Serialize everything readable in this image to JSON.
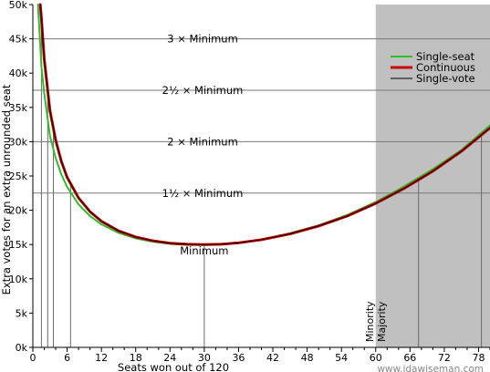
{
  "chart_data": {
    "type": "line",
    "xlabel": "Seats won out of 120",
    "ylabel": "Extra votes for an extra unrounded seat",
    "xlim": [
      0,
      80
    ],
    "ylim": [
      0,
      50000
    ],
    "x_ticks": [
      0,
      6,
      12,
      18,
      24,
      30,
      36,
      42,
      48,
      54,
      60,
      66,
      72,
      78
    ],
    "y_ticks": [
      0,
      5000,
      10000,
      15000,
      20000,
      25000,
      30000,
      35000,
      40000,
      45000,
      50000
    ],
    "y_tick_labels": [
      "0k",
      "5k",
      "10k",
      "15k",
      "20k",
      "25k",
      "30k",
      "35k",
      "40k",
      "45k",
      "50k"
    ],
    "shaded_region": {
      "from": 60,
      "to": 80,
      "color": "#c0c0c0"
    },
    "side_labels": {
      "minority": "Minority",
      "majority": "Majority"
    },
    "minimum": 15000,
    "reference_lines": [
      {
        "label": "Minimum",
        "value": 15000
      },
      {
        "label": "1½ × Minimum",
        "value": 22500
      },
      {
        "label": "2 × Minimum",
        "value": 30000
      },
      {
        "label": "2½ × Minimum",
        "value": 37500
      },
      {
        "label": "3 × Minimum",
        "value": 45000
      }
    ],
    "vertical_markers": [
      1.5,
      2.6,
      3.6,
      6.6,
      30,
      67.5,
      78.5
    ],
    "legend_position": "top-right",
    "series": [
      {
        "name": "Single-seat",
        "color": "#2dbd2d",
        "width": 2,
        "x": [
          0.9,
          1.5,
          2,
          3,
          4,
          5,
          6,
          8,
          10,
          12,
          15,
          18,
          21,
          24,
          27,
          30,
          33,
          36,
          40,
          45,
          50,
          55,
          60,
          65,
          70,
          75,
          80
        ],
        "y": [
          50000,
          41000,
          37000,
          30800,
          27600,
          25200,
          23400,
          20850,
          19150,
          17950,
          16700,
          15900,
          15400,
          15100,
          14950,
          14950,
          15050,
          15300,
          15750,
          16650,
          17800,
          19300,
          21200,
          23500,
          26000,
          28800,
          32400
        ]
      },
      {
        "name": "Continuous",
        "color": "#cc0000",
        "width": 3,
        "x": [
          1.3,
          1.5,
          2,
          3,
          4,
          5,
          6,
          8,
          10,
          12,
          15,
          18,
          21,
          24,
          27,
          30,
          33,
          36,
          40,
          45,
          50,
          55,
          60,
          65,
          70,
          75,
          80
        ],
        "y": [
          50000,
          48000,
          42000,
          34500,
          30200,
          27100,
          24800,
          21800,
          19800,
          18400,
          17000,
          16100,
          15550,
          15200,
          15050,
          15000,
          15050,
          15250,
          15700,
          16550,
          17700,
          19150,
          21000,
          23200,
          25700,
          28600,
          32000
        ]
      },
      {
        "name": "Single-vote",
        "color": "#000000",
        "width": 1,
        "x": [
          1.3,
          1.5,
          2,
          3,
          4,
          5,
          6,
          8,
          10,
          12,
          15,
          18,
          21,
          24,
          27,
          30,
          33,
          36,
          40,
          45,
          50,
          55,
          60,
          65,
          70,
          75,
          80
        ],
        "y": [
          50000,
          48000,
          42000,
          34500,
          30200,
          27100,
          24800,
          21800,
          19800,
          18400,
          17000,
          16100,
          15550,
          15200,
          15050,
          15000,
          15050,
          15250,
          15700,
          16550,
          17700,
          19150,
          21000,
          23200,
          25700,
          28600,
          32000
        ]
      }
    ],
    "watermark": "www.jdawiseman.com"
  }
}
